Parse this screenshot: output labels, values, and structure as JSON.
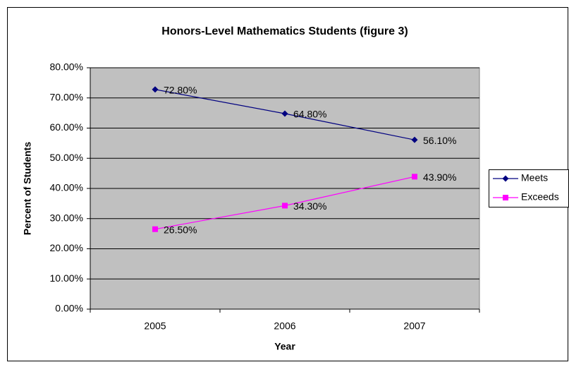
{
  "chart_data": {
    "type": "line",
    "title": "Honors-Level Mathematics Students (figure 3)",
    "x_label": "Year",
    "y_label": "Percent of Students",
    "categories": [
      "2005",
      "2006",
      "2007"
    ],
    "series": [
      {
        "name": "Meets",
        "color": "#000080",
        "marker": "diamond",
        "values": [
          72.8,
          64.8,
          56.1
        ],
        "value_labels": [
          "72.80%",
          "64.80%",
          "56.10%"
        ]
      },
      {
        "name": "Exceeds",
        "color": "#ff00ff",
        "marker": "square",
        "values": [
          26.5,
          34.3,
          43.9
        ],
        "value_labels": [
          "26.50%",
          "34.30%",
          "43.90%"
        ]
      }
    ],
    "ylim": [
      0,
      80
    ],
    "yticks": [
      {
        "value": 0,
        "label": "0.00%"
      },
      {
        "value": 10,
        "label": "10.00%"
      },
      {
        "value": 20,
        "label": "20.00%"
      },
      {
        "value": 30,
        "label": "30.00%"
      },
      {
        "value": 40,
        "label": "40.00%"
      },
      {
        "value": 50,
        "label": "50.00%"
      },
      {
        "value": 60,
        "label": "60.00%"
      },
      {
        "value": 70,
        "label": "70.00%"
      },
      {
        "value": 80,
        "label": "80.00%"
      }
    ],
    "grid": true,
    "plot_background": "#c0c0c0",
    "legend": "right"
  }
}
